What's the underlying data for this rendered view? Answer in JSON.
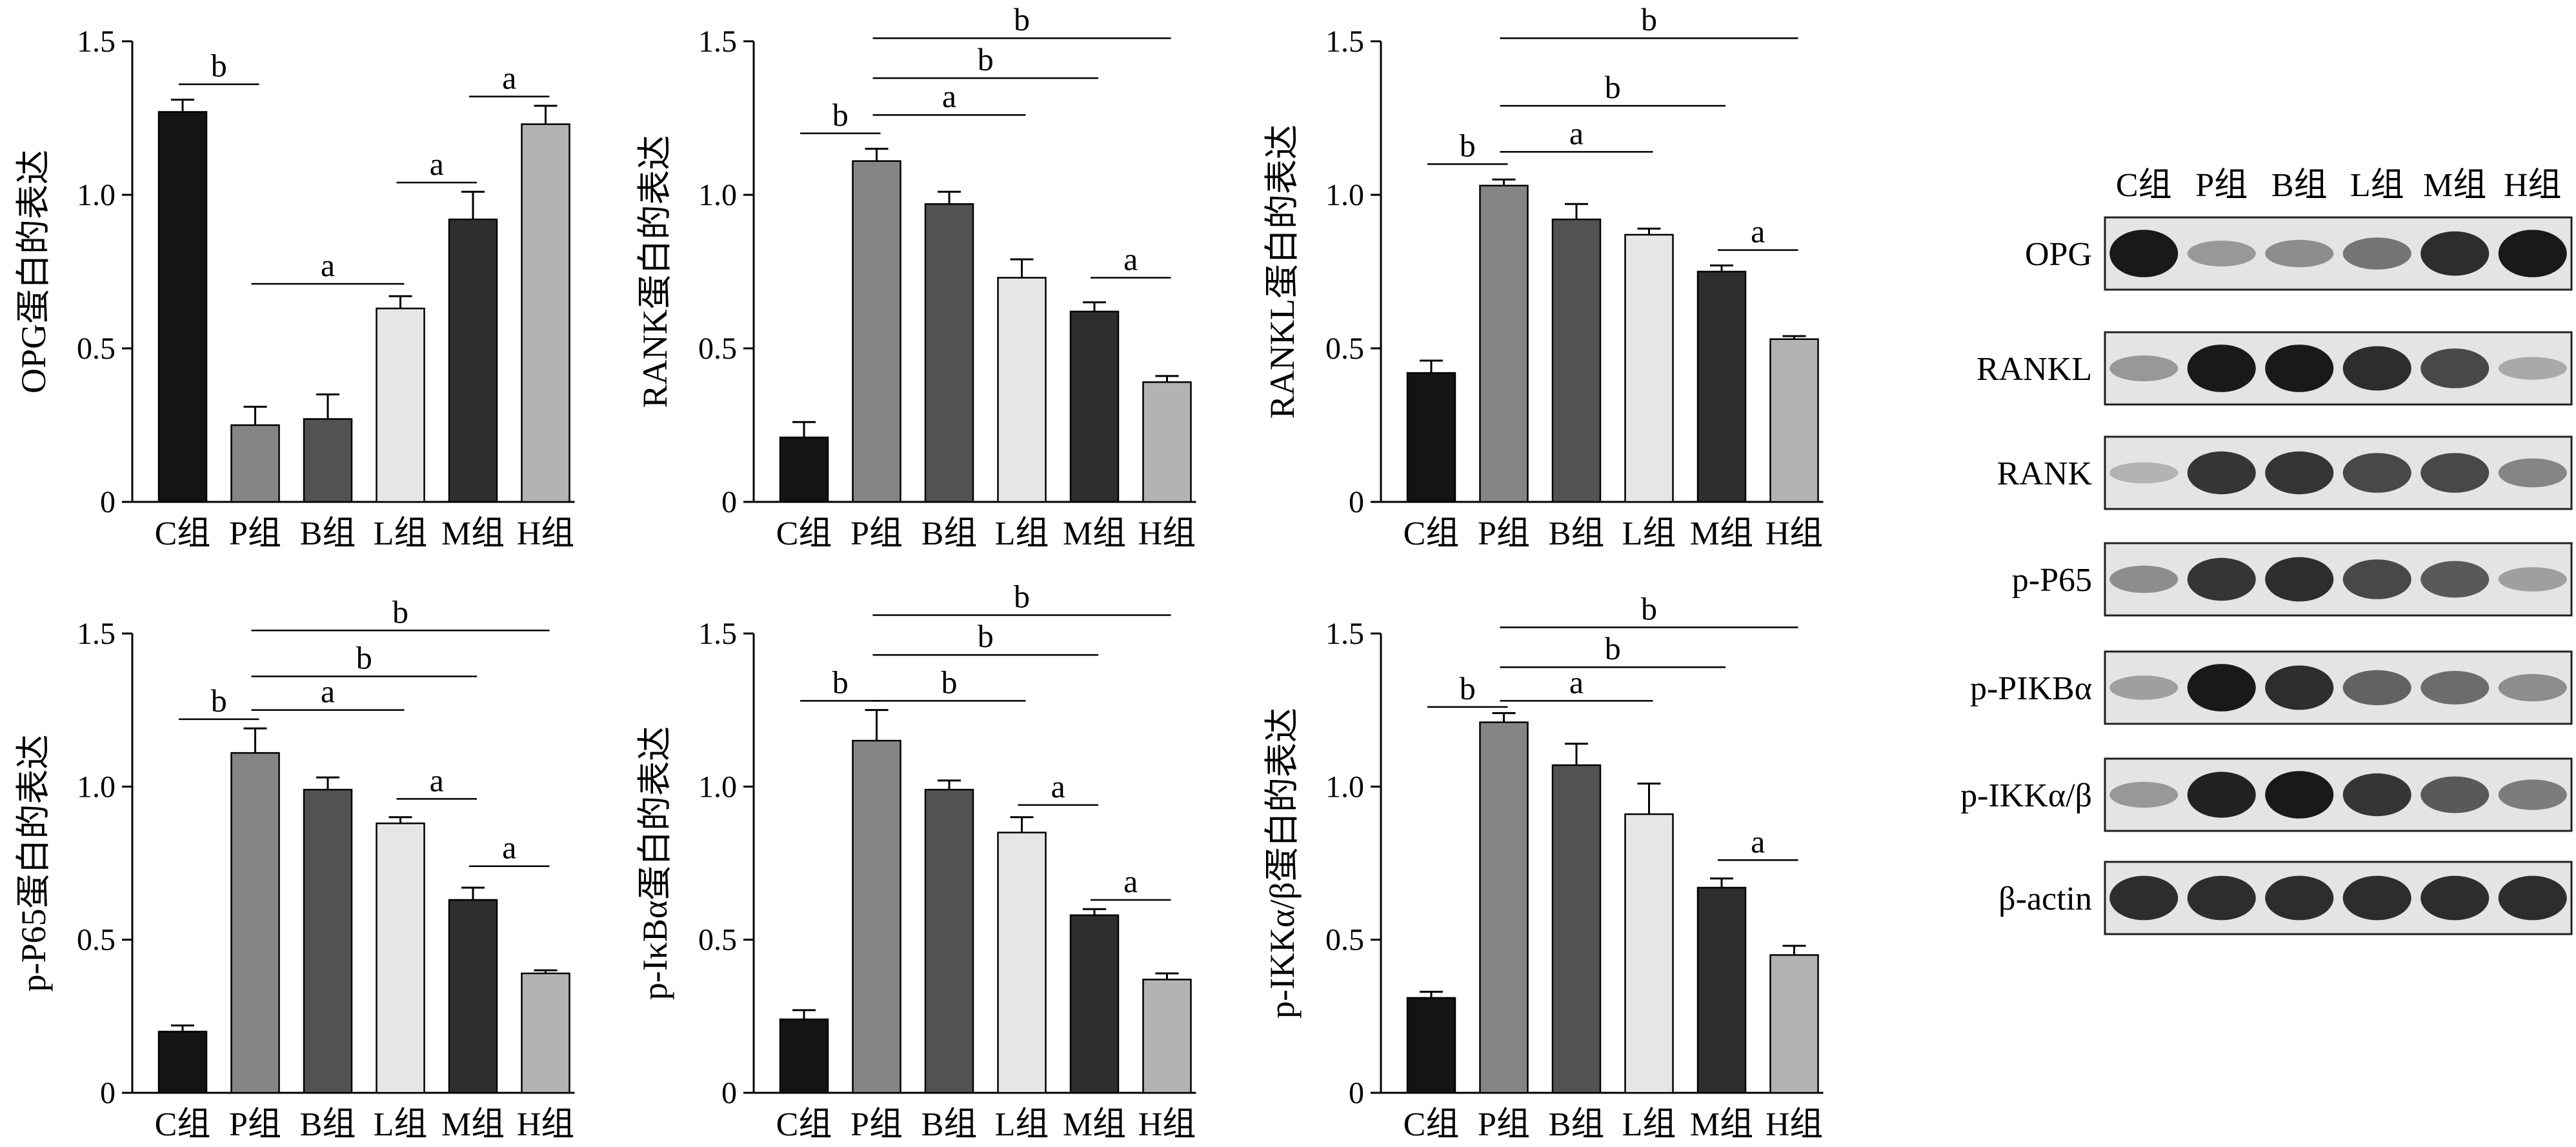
{
  "colors": {
    "C组": "#141414",
    "P组": "#858585",
    "B组": "#525252",
    "L组": "#e6e6e6",
    "M组": "#2e2e2e",
    "H组": "#b3b3b3",
    "axis": "#000000",
    "blot_band": "#111111",
    "blot_bg": "#e4e4e4"
  },
  "chart_data": [
    {
      "type": "bar",
      "panel": "A",
      "ylabel": "OPG蛋白的表达",
      "categories": [
        "C组",
        "P组",
        "B组",
        "L组",
        "M组",
        "H组"
      ],
      "values": [
        1.27,
        0.25,
        0.27,
        0.63,
        0.92,
        1.23
      ],
      "errors": [
        0.04,
        0.06,
        0.08,
        0.04,
        0.09,
        0.06
      ],
      "ylim": [
        0,
        1.5
      ],
      "yticks": [
        "0",
        "0.5",
        "1.0",
        "1.5"
      ],
      "significance": [
        {
          "label": "b",
          "from": 0,
          "to": 1,
          "y": 1.36
        },
        {
          "label": "a",
          "from": 1,
          "to": 3,
          "y": 0.71
        },
        {
          "label": "a",
          "from": 3,
          "to": 4,
          "y": 1.04
        },
        {
          "label": "a",
          "from": 4,
          "to": 5,
          "y": 1.32
        }
      ]
    },
    {
      "type": "bar",
      "panel": "B",
      "ylabel": "RANK蛋白的表达",
      "categories": [
        "C组",
        "P组",
        "B组",
        "L组",
        "M组",
        "H组"
      ],
      "values": [
        0.21,
        1.11,
        0.97,
        0.73,
        0.62,
        0.39
      ],
      "errors": [
        0.05,
        0.04,
        0.04,
        0.06,
        0.03,
        0.02
      ],
      "ylim": [
        0,
        1.5
      ],
      "yticks": [
        "0",
        "0.5",
        "1.0",
        "1.5"
      ],
      "significance": [
        {
          "label": "b",
          "from": 0,
          "to": 1,
          "y": 1.2
        },
        {
          "label": "a",
          "from": 1,
          "to": 3,
          "y": 1.26
        },
        {
          "label": "b",
          "from": 1,
          "to": 4,
          "y": 1.38
        },
        {
          "label": "b",
          "from": 1,
          "to": 5,
          "y": 1.51
        },
        {
          "label": "a",
          "from": 4,
          "to": 5,
          "y": 0.73
        }
      ]
    },
    {
      "type": "bar",
      "panel": "C",
      "ylabel": "RANKL蛋白的表达",
      "categories": [
        "C组",
        "P组",
        "B组",
        "L组",
        "M组",
        "H组"
      ],
      "values": [
        0.42,
        1.03,
        0.92,
        0.87,
        0.75,
        0.53
      ],
      "errors": [
        0.04,
        0.02,
        0.05,
        0.02,
        0.02,
        0.01
      ],
      "ylim": [
        0,
        1.5
      ],
      "yticks": [
        "0",
        "0.5",
        "1.0",
        "1.5"
      ],
      "significance": [
        {
          "label": "b",
          "from": 0,
          "to": 1,
          "y": 1.1
        },
        {
          "label": "a",
          "from": 1,
          "to": 3,
          "y": 1.14
        },
        {
          "label": "b",
          "from": 1,
          "to": 4,
          "y": 1.29
        },
        {
          "label": "b",
          "from": 1,
          "to": 5,
          "y": 1.51
        },
        {
          "label": "a",
          "from": 4,
          "to": 5,
          "y": 0.82
        }
      ]
    },
    {
      "type": "bar",
      "panel": "D",
      "ylabel": "p-P65蛋白的表达",
      "categories": [
        "C组",
        "P组",
        "B组",
        "L组",
        "M组",
        "H组"
      ],
      "values": [
        0.2,
        1.11,
        0.99,
        0.88,
        0.63,
        0.39
      ],
      "errors": [
        0.02,
        0.08,
        0.04,
        0.02,
        0.04,
        0.01
      ],
      "ylim": [
        0,
        1.5
      ],
      "yticks": [
        "0",
        "0.5",
        "1.0",
        "1.5"
      ],
      "significance": [
        {
          "label": "b",
          "from": 0,
          "to": 1,
          "y": 1.22
        },
        {
          "label": "a",
          "from": 1,
          "to": 3,
          "y": 1.25
        },
        {
          "label": "b",
          "from": 1,
          "to": 4,
          "y": 1.36
        },
        {
          "label": "b",
          "from": 1,
          "to": 5,
          "y": 1.51
        },
        {
          "label": "a",
          "from": 3,
          "to": 4,
          "y": 0.96
        },
        {
          "label": "a",
          "from": 4,
          "to": 5,
          "y": 0.74
        }
      ]
    },
    {
      "type": "bar",
      "panel": "E",
      "ylabel": "p-IκBα蛋白的表达",
      "categories": [
        "C组",
        "P组",
        "B组",
        "L组",
        "M组",
        "H组"
      ],
      "values": [
        0.24,
        1.15,
        0.99,
        0.85,
        0.58,
        0.37
      ],
      "errors": [
        0.03,
        0.1,
        0.03,
        0.05,
        0.02,
        0.02
      ],
      "ylim": [
        0,
        1.5
      ],
      "yticks": [
        "0",
        "0.5",
        "1.0",
        "1.5"
      ],
      "significance": [
        {
          "label": "b",
          "from": 0,
          "to": 1,
          "y": 1.28
        },
        {
          "label": "b",
          "from": 1,
          "to": 3,
          "y": 1.28
        },
        {
          "label": "b",
          "from": 1,
          "to": 4,
          "y": 1.43
        },
        {
          "label": "b",
          "from": 1,
          "to": 5,
          "y": 1.56
        },
        {
          "label": "a",
          "from": 3,
          "to": 4,
          "y": 0.94
        },
        {
          "label": "a",
          "from": 4,
          "to": 5,
          "y": 0.63
        }
      ]
    },
    {
      "type": "bar",
      "panel": "F",
      "ylabel": "p-IKKα/β蛋白的表达",
      "categories": [
        "C组",
        "P组",
        "B组",
        "L组",
        "M组",
        "H组"
      ],
      "values": [
        0.31,
        1.21,
        1.07,
        0.91,
        0.67,
        0.45
      ],
      "errors": [
        0.02,
        0.03,
        0.07,
        0.1,
        0.03,
        0.03
      ],
      "ylim": [
        0,
        1.5
      ],
      "yticks": [
        "0",
        "0.5",
        "1.0",
        "1.5"
      ],
      "significance": [
        {
          "label": "b",
          "from": 0,
          "to": 1,
          "y": 1.26
        },
        {
          "label": "a",
          "from": 1,
          "to": 3,
          "y": 1.28
        },
        {
          "label": "b",
          "from": 1,
          "to": 4,
          "y": 1.39
        },
        {
          "label": "b",
          "from": 1,
          "to": 5,
          "y": 1.52
        },
        {
          "label": "a",
          "from": 4,
          "to": 5,
          "y": 0.76
        }
      ]
    }
  ],
  "blot": {
    "lanes": [
      "C组",
      "P组",
      "B组",
      "L组",
      "M组",
      "H组"
    ],
    "rows": [
      {
        "label": "OPG",
        "intensity": [
          0.95,
          0.25,
          0.3,
          0.45,
          0.85,
          0.95
        ]
      },
      {
        "label": "RANKL",
        "intensity": [
          0.25,
          0.95,
          0.95,
          0.85,
          0.7,
          0.15
        ]
      },
      {
        "label": "RANK",
        "intensity": [
          0.1,
          0.8,
          0.8,
          0.7,
          0.7,
          0.35
        ]
      },
      {
        "label": "p-P65",
        "intensity": [
          0.3,
          0.8,
          0.85,
          0.7,
          0.6,
          0.2
        ]
      },
      {
        "label": "p-PIKBα",
        "intensity": [
          0.2,
          0.95,
          0.85,
          0.55,
          0.5,
          0.3
        ]
      },
      {
        "label": "p-IKKα/β",
        "intensity": [
          0.25,
          0.9,
          0.95,
          0.8,
          0.6,
          0.4
        ]
      },
      {
        "label": "β-actin",
        "intensity": [
          0.85,
          0.85,
          0.85,
          0.85,
          0.85,
          0.85
        ]
      }
    ]
  }
}
